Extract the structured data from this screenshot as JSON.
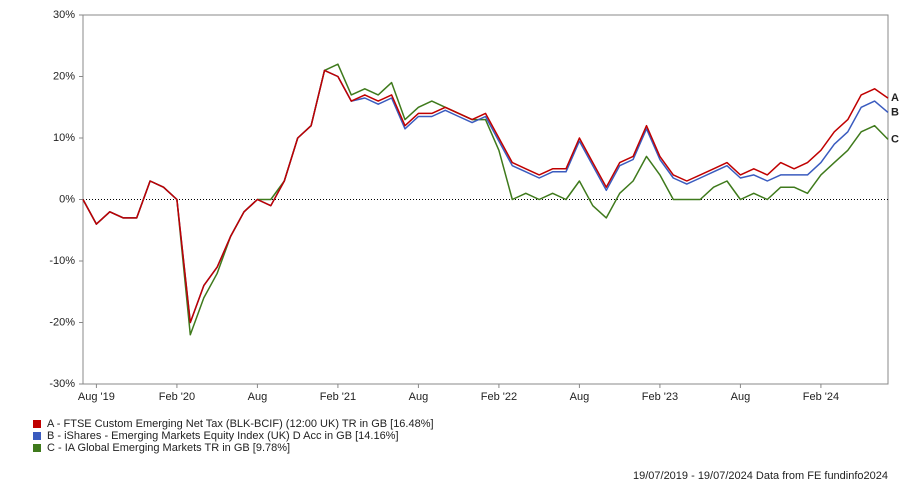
{
  "chart_data": {
    "type": "line",
    "categories": [
      null,
      "Aug '19",
      null,
      null,
      null,
      null,
      null,
      "Feb '20",
      null,
      null,
      null,
      null,
      null,
      "Aug",
      null,
      null,
      null,
      null,
      null,
      "Feb '21",
      null,
      null,
      null,
      null,
      null,
      "Aug",
      null,
      null,
      null,
      null,
      null,
      "Feb '22",
      null,
      null,
      null,
      null,
      null,
      "Aug",
      null,
      null,
      null,
      null,
      null,
      "Feb '23",
      null,
      null,
      null,
      null,
      null,
      "Aug",
      null,
      null,
      null,
      null,
      null,
      "Feb '24",
      null,
      null,
      null,
      null,
      null
    ],
    "series": [
      {
        "name": "A - FTSE Custom Emerging Net Tax (BLK-BCIF) (12:00 UK) TR in GB [16.48%]",
        "tag": "A",
        "color": "#c00000",
        "values": [
          0,
          -4,
          -2,
          -3,
          -3,
          3,
          2,
          0,
          -20,
          -14,
          -11,
          -6,
          -2,
          0,
          -1,
          3,
          10,
          12,
          21,
          20,
          16,
          17,
          16,
          17,
          12,
          14,
          14,
          15,
          14,
          13,
          14,
          10,
          6,
          5,
          4,
          5,
          5,
          10,
          6,
          2,
          6,
          7,
          12,
          7,
          4,
          3,
          4,
          5,
          6,
          4,
          5,
          4,
          6,
          5,
          6,
          8,
          11,
          13,
          17,
          18,
          16.48
        ]
      },
      {
        "name": "B - iShares - Emerging Markets Equity Index (UK) D Acc in GB [14.16%]",
        "tag": "B",
        "color": "#3a5bbf",
        "values": [
          0,
          -4,
          -2,
          -3,
          -3,
          3,
          2,
          0,
          -20,
          -14,
          -11,
          -6,
          -2,
          0,
          -1,
          3,
          10,
          12,
          21,
          20,
          16,
          16.5,
          15.5,
          16.5,
          11.5,
          13.5,
          13.5,
          14.5,
          13.5,
          12.5,
          13.5,
          9.5,
          5.5,
          4.5,
          3.5,
          4.5,
          4.5,
          9.5,
          5.5,
          1.5,
          5.5,
          6.5,
          11.5,
          6.5,
          3.5,
          2.5,
          3.5,
          4.5,
          5.5,
          3.5,
          4,
          3,
          4,
          4,
          4,
          6,
          9,
          11,
          15,
          16,
          14.16
        ]
      },
      {
        "name": "C - IA Global Emerging Markets TR in GB [9.78%]",
        "tag": "C",
        "color": "#3f7a1c",
        "values": [
          0,
          -4,
          -2,
          -3,
          -3,
          3,
          2,
          0,
          -22,
          -16,
          -12,
          -6,
          -2,
          0,
          0,
          3,
          10,
          12,
          21,
          22,
          17,
          18,
          17,
          19,
          13,
          15,
          16,
          15,
          14,
          13,
          13,
          8,
          0,
          1,
          0,
          1,
          0,
          3,
          -1,
          -3,
          1,
          3,
          7,
          4,
          0,
          0,
          0,
          2,
          3,
          0,
          1,
          0,
          2,
          2,
          1,
          4,
          6,
          8,
          11,
          12,
          9.78
        ]
      }
    ],
    "ylim": [
      -30,
      30
    ],
    "yticks": [
      {
        "value": -30,
        "label": "-30%"
      },
      {
        "value": -20,
        "label": "-20%"
      },
      {
        "value": -10,
        "label": "-10%"
      },
      {
        "value": 0,
        "label": "0%"
      },
      {
        "value": 10,
        "label": "10%"
      },
      {
        "value": 20,
        "label": "20%"
      },
      {
        "value": 30,
        "label": "30%"
      }
    ],
    "footer": "19/07/2019 - 19/07/2024 Data from FE fundinfo2024"
  }
}
